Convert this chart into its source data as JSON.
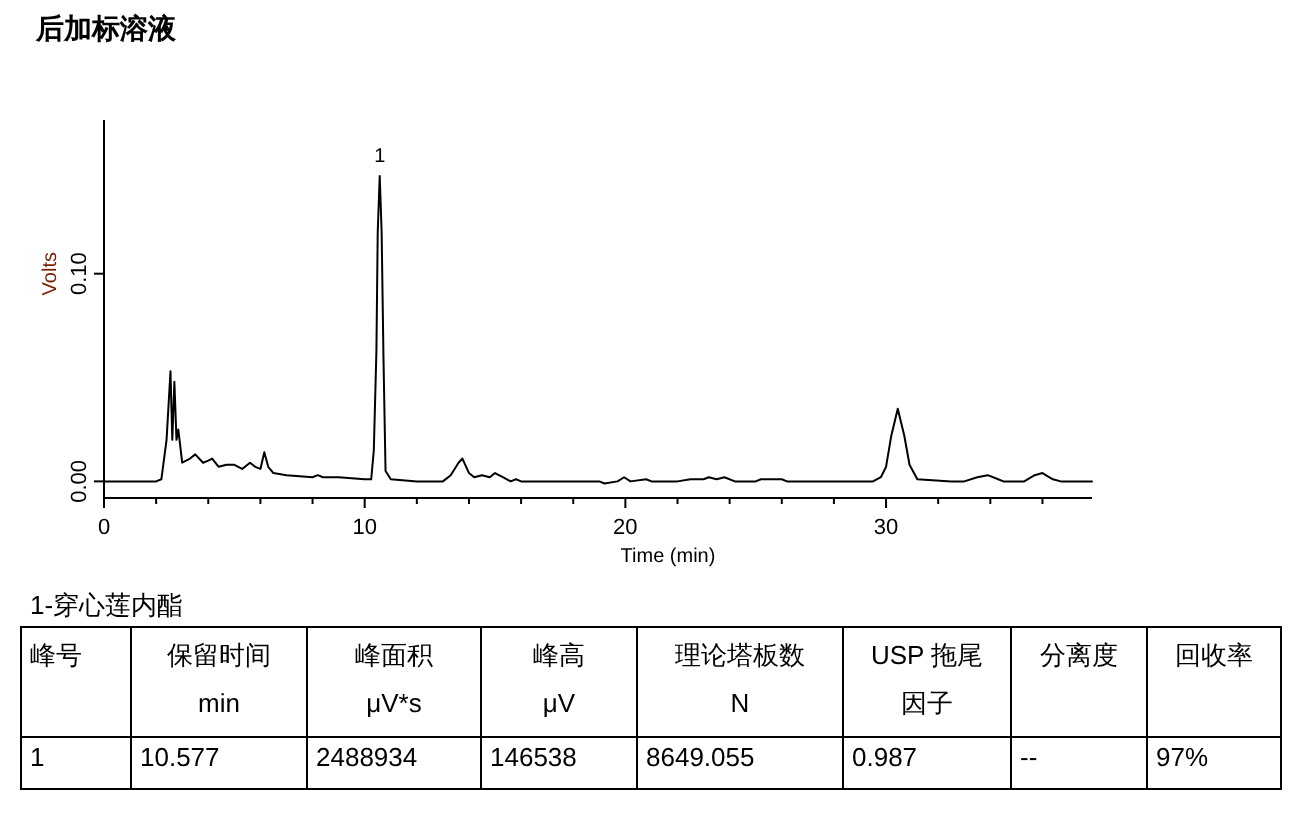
{
  "chart_data": {
    "type": "line",
    "title": "后加标溶液",
    "xlabel": "Time (min)",
    "ylabel": "Volts",
    "xlim": [
      0,
      37.9
    ],
    "ylim": [
      -0.008,
      0.174
    ],
    "xticks": [
      0,
      {
        "value": 2,
        "label": null
      },
      {
        "value": 4,
        "label": null
      },
      {
        "value": 6,
        "label": null
      },
      {
        "value": 8,
        "label": null
      },
      10,
      {
        "value": 12,
        "label": null
      },
      {
        "value": 14,
        "label": null
      },
      {
        "value": 16,
        "label": null
      },
      {
        "value": 18,
        "label": null
      },
      20,
      {
        "value": 22,
        "label": null
      },
      {
        "value": 24,
        "label": null
      },
      {
        "value": 26,
        "label": null
      },
      {
        "value": 28,
        "label": null
      },
      30,
      {
        "value": 32,
        "label": null
      },
      {
        "value": 34,
        "label": null
      },
      {
        "value": 36,
        "label": null
      }
    ],
    "yticks": [
      {
        "value": 0,
        "label": "0.00"
      },
      {
        "value": 0.1,
        "label": "0.10"
      }
    ],
    "series": [
      {
        "color": "#000000",
        "x": [
          0,
          2.0,
          2.2,
          2.4,
          2.55,
          2.62,
          2.7,
          2.78,
          2.85,
          3.0,
          3.3,
          3.5,
          3.8,
          4.0,
          4.15,
          4.4,
          4.7,
          5.0,
          5.3,
          5.6,
          5.8,
          6.0,
          6.15,
          6.3,
          6.5,
          7.0,
          8.0,
          8.2,
          8.4,
          9.0,
          10.0,
          10.25,
          10.35,
          10.45,
          10.5,
          10.577,
          10.65,
          10.72,
          10.8,
          11.0,
          12.0,
          13.0,
          13.3,
          13.6,
          13.75,
          14.0,
          14.2,
          14.5,
          14.8,
          15.0,
          15.3,
          15.6,
          15.8,
          16.0,
          19.0,
          19.2,
          19.7,
          19.95,
          20.2,
          20.8,
          21.0,
          22.0,
          22.5,
          23.0,
          23.2,
          23.5,
          23.8,
          24.2,
          25.0,
          25.2,
          26.0,
          26.2,
          29.5,
          29.8,
          30.0,
          30.2,
          30.45,
          30.7,
          30.9,
          31.2,
          32.5,
          33.0,
          33.5,
          33.9,
          34.3,
          34.5,
          35.3,
          35.7,
          36.0,
          36.4,
          36.7,
          37.9
        ],
        "values": [
          0,
          0,
          0.001,
          0.02,
          0.053,
          0.02,
          0.048,
          0.02,
          0.025,
          0.009,
          0.011,
          0.013,
          0.009,
          0.01,
          0.011,
          0.007,
          0.008,
          0.008,
          0.006,
          0.009,
          0.007,
          0.006,
          0.014,
          0.007,
          0.004,
          0.003,
          0.002,
          0.003,
          0.002,
          0.002,
          0.001,
          0.001,
          0.015,
          0.063,
          0.12,
          0.147,
          0.12,
          0.06,
          0.005,
          0.001,
          0,
          0,
          0.003,
          0.009,
          0.011,
          0.004,
          0.002,
          0.003,
          0.002,
          0.004,
          0.002,
          0,
          0.001,
          0,
          0,
          -0.001,
          0,
          0.002,
          0,
          0.001,
          0,
          0,
          0.001,
          0.001,
          0.002,
          0.001,
          0.002,
          0,
          0,
          0.001,
          0.001,
          0,
          0,
          0.002,
          0.007,
          0.022,
          0.035,
          0.022,
          0.008,
          0.001,
          0,
          0,
          0.002,
          0.003,
          0.001,
          0,
          0,
          0.003,
          0.004,
          0.001,
          0,
          0
        ]
      }
    ],
    "annotations": [
      {
        "text": "1",
        "x": 10.577,
        "y": 0.147
      },
      "1-穿心莲内酯",
      "峰号",
      "保留时间\nmin",
      "峰面积\nμV*s",
      "峰高\nμV",
      "理论塔板数\nN",
      "USP 拖尾因子",
      "分离度",
      "回收率",
      "1",
      "10.577",
      "2488934",
      "146538",
      "8649.055",
      "0.987",
      "--",
      "97%"
    ]
  }
}
